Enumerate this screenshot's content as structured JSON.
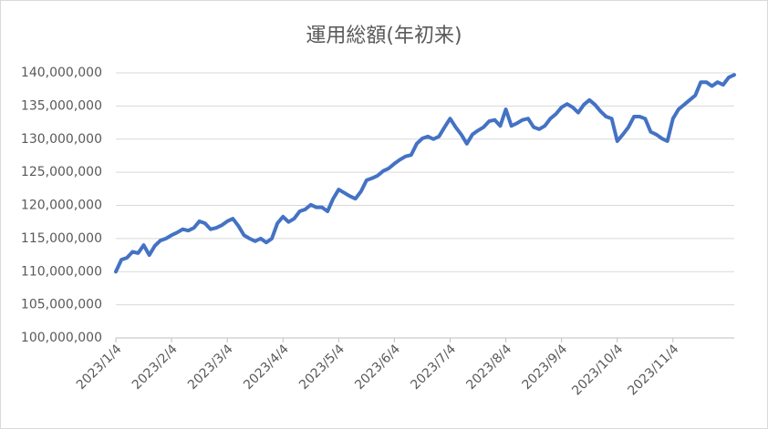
{
  "chart_data": {
    "type": "line",
    "title": "運用総額(年初来)",
    "categories": [
      "2023/1/4",
      null,
      null,
      null,
      null,
      null,
      null,
      null,
      null,
      null,
      "2023/2/4",
      null,
      null,
      null,
      null,
      null,
      null,
      null,
      null,
      null,
      "2023/3/4",
      null,
      null,
      null,
      null,
      null,
      null,
      null,
      null,
      null,
      "2023/4/4",
      null,
      null,
      null,
      null,
      null,
      null,
      null,
      null,
      null,
      "2023/5/4",
      null,
      null,
      null,
      null,
      null,
      null,
      null,
      null,
      null,
      "2023/6/4",
      null,
      null,
      null,
      null,
      null,
      null,
      null,
      null,
      null,
      "2023/7/4",
      null,
      null,
      null,
      null,
      null,
      null,
      null,
      null,
      null,
      "2023/8/4",
      null,
      null,
      null,
      null,
      null,
      null,
      null,
      null,
      null,
      "2023/9/4",
      null,
      null,
      null,
      null,
      null,
      null,
      null,
      null,
      null,
      "2023/10/4",
      null,
      null,
      null,
      null,
      null,
      null,
      null,
      null,
      null,
      "2023/11/4",
      null,
      null,
      null,
      null,
      null,
      null,
      null,
      null,
      null,
      null,
      null
    ],
    "series": [
      {
        "color": "#4472c4",
        "values": [
          110000000,
          111800000,
          112100000,
          113000000,
          112800000,
          114000000,
          112500000,
          113900000,
          114700000,
          115000000,
          115500000,
          115900000,
          116400000,
          116200000,
          116600000,
          117600000,
          117300000,
          116400000,
          116600000,
          117000000,
          117600000,
          118000000,
          116900000,
          115500000,
          115000000,
          114600000,
          115000000,
          114400000,
          115000000,
          117300000,
          118300000,
          117500000,
          118000000,
          119100000,
          119400000,
          120100000,
          119700000,
          119700000,
          119100000,
          121000000,
          122400000,
          121900000,
          121400000,
          121000000,
          122100000,
          123800000,
          124100000,
          124500000,
          125200000,
          125600000,
          126300000,
          126900000,
          127400000,
          127600000,
          129300000,
          130100000,
          130400000,
          130000000,
          130400000,
          131800000,
          133100000,
          131800000,
          130700000,
          129300000,
          130700000,
          131300000,
          131800000,
          132700000,
          132900000,
          132000000,
          134500000,
          132000000,
          132400000,
          132900000,
          133100000,
          131800000,
          131500000,
          132000000,
          133100000,
          133800000,
          134800000,
          135300000,
          134800000,
          134000000,
          135200000,
          135900000,
          135200000,
          134200000,
          133400000,
          133100000,
          129700000,
          130700000,
          131800000,
          133400000,
          133400000,
          133100000,
          131100000,
          130700000,
          130100000,
          129700000,
          133100000,
          134500000,
          135200000,
          135900000,
          136600000,
          138600000,
          138600000,
          138000000,
          138600000,
          138200000,
          139300000,
          139700000
        ]
      }
    ],
    "ylim": [
      100000000,
      140000000
    ],
    "yticks": [
      {
        "value": 100000000,
        "label": "100,000,000"
      },
      {
        "value": 105000000,
        "label": "105,000,000"
      },
      {
        "value": 110000000,
        "label": "110,000,000"
      },
      {
        "value": 115000000,
        "label": "115,000,000"
      },
      {
        "value": 120000000,
        "label": "120,000,000"
      },
      {
        "value": 125000000,
        "label": "125,000,000"
      },
      {
        "value": 130000000,
        "label": "130,000,000"
      },
      {
        "value": 135000000,
        "label": "135,000,000"
      },
      {
        "value": 140000000,
        "label": "140,000,000"
      }
    ],
    "grid": true
  }
}
